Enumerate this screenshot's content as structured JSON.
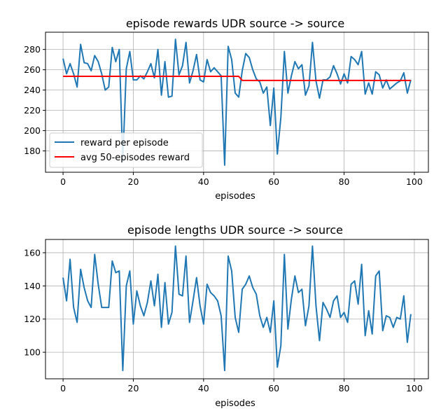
{
  "chart_data": [
    {
      "type": "line",
      "title": "episode rewards UDR source -> source",
      "xlabel": "episodes",
      "ylabel": "",
      "xlim": [
        -5,
        104
      ],
      "ylim": [
        159,
        297
      ],
      "xticks": [
        0,
        20,
        40,
        60,
        80,
        100
      ],
      "yticks": [
        180,
        200,
        220,
        240,
        260,
        280
      ],
      "grid": true,
      "legend": "lower-left",
      "series": [
        {
          "name": "reward per episode",
          "color": "#1f77b4",
          "x": [
            0,
            1,
            2,
            3,
            4,
            5,
            6,
            7,
            8,
            9,
            10,
            11,
            12,
            13,
            14,
            15,
            16,
            17,
            18,
            19,
            20,
            21,
            22,
            23,
            24,
            25,
            26,
            27,
            28,
            29,
            30,
            31,
            32,
            33,
            34,
            35,
            36,
            37,
            38,
            39,
            40,
            41,
            42,
            43,
            44,
            45,
            46,
            47,
            48,
            49,
            50,
            51,
            52,
            53,
            54,
            55,
            56,
            57,
            58,
            59,
            60,
            61,
            62,
            63,
            64,
            65,
            66,
            67,
            68,
            69,
            70,
            71,
            72,
            73,
            74,
            75,
            76,
            77,
            78,
            79,
            80,
            81,
            82,
            83,
            84,
            85,
            86,
            87,
            88,
            89,
            90,
            91,
            92,
            93,
            94,
            95,
            96,
            97,
            98,
            99
          ],
          "values": [
            271,
            256,
            266,
            256,
            243,
            285,
            267,
            266,
            259,
            274,
            268,
            256,
            240,
            243,
            282,
            268,
            280,
            170,
            261,
            278,
            250,
            250,
            254,
            251,
            258,
            266,
            252,
            280,
            235,
            268,
            233,
            234,
            290,
            255,
            264,
            287,
            247,
            259,
            275,
            250,
            248,
            270,
            258,
            262,
            258,
            254,
            166,
            283,
            270,
            237,
            233,
            259,
            276,
            272,
            260,
            251,
            248,
            237,
            243,
            205,
            242,
            177,
            213,
            278,
            237,
            254,
            268,
            261,
            265,
            235,
            244,
            287,
            249,
            232,
            250,
            250,
            253,
            264,
            256,
            246,
            256,
            247,
            273,
            270,
            265,
            278,
            236,
            247,
            236,
            258,
            255,
            242,
            250,
            241,
            244,
            247,
            249,
            257,
            237,
            250
          ]
        },
        {
          "name": "avg 50-episodes reward",
          "color": "#ff0000",
          "x": [
            0,
            50,
            51,
            99
          ],
          "values": [
            253.5,
            253.5,
            249.5,
            249.5
          ]
        }
      ]
    },
    {
      "type": "line",
      "title": "episode lengths UDR source -> source",
      "xlabel": "episodes",
      "ylabel": "",
      "xlim": [
        -5,
        104
      ],
      "ylim": [
        84,
        168
      ],
      "xticks": [
        0,
        20,
        40,
        60,
        80,
        100
      ],
      "yticks": [
        100,
        120,
        140,
        160
      ],
      "grid": true,
      "series": [
        {
          "name": "",
          "color": "#1f77b4",
          "x": [
            0,
            1,
            2,
            3,
            4,
            5,
            6,
            7,
            8,
            9,
            10,
            11,
            12,
            13,
            14,
            15,
            16,
            17,
            18,
            19,
            20,
            21,
            22,
            23,
            24,
            25,
            26,
            27,
            28,
            29,
            30,
            31,
            32,
            33,
            34,
            35,
            36,
            37,
            38,
            39,
            40,
            41,
            42,
            43,
            44,
            45,
            46,
            47,
            48,
            49,
            50,
            51,
            52,
            53,
            54,
            55,
            56,
            57,
            58,
            59,
            60,
            61,
            62,
            63,
            64,
            65,
            66,
            67,
            68,
            69,
            70,
            71,
            72,
            73,
            74,
            75,
            76,
            77,
            78,
            79,
            80,
            81,
            82,
            83,
            84,
            85,
            86,
            87,
            88,
            89,
            90,
            91,
            92,
            93,
            94,
            95,
            96,
            97,
            98,
            99
          ],
          "values": [
            145,
            131,
            156,
            127,
            118,
            150,
            139,
            131,
            127,
            159,
            141,
            127,
            127,
            127,
            155,
            148,
            149,
            89,
            140,
            149,
            117,
            137,
            128,
            122,
            130,
            143,
            128,
            147,
            115,
            142,
            117,
            124,
            164,
            135,
            134,
            158,
            118,
            131,
            145,
            128,
            117,
            141,
            136,
            134,
            131,
            122,
            89,
            158,
            149,
            121,
            112,
            138,
            141,
            146,
            139,
            135,
            122,
            115,
            121,
            112,
            131,
            91,
            104,
            159,
            114,
            132,
            146,
            136,
            138,
            116,
            128,
            164,
            128,
            107,
            130,
            126,
            121,
            131,
            134,
            121,
            124,
            118,
            141,
            143,
            129,
            153,
            110,
            125,
            111,
            146,
            149,
            113,
            122,
            121,
            115,
            121,
            120,
            134,
            106,
            123
          ]
        }
      ]
    }
  ]
}
